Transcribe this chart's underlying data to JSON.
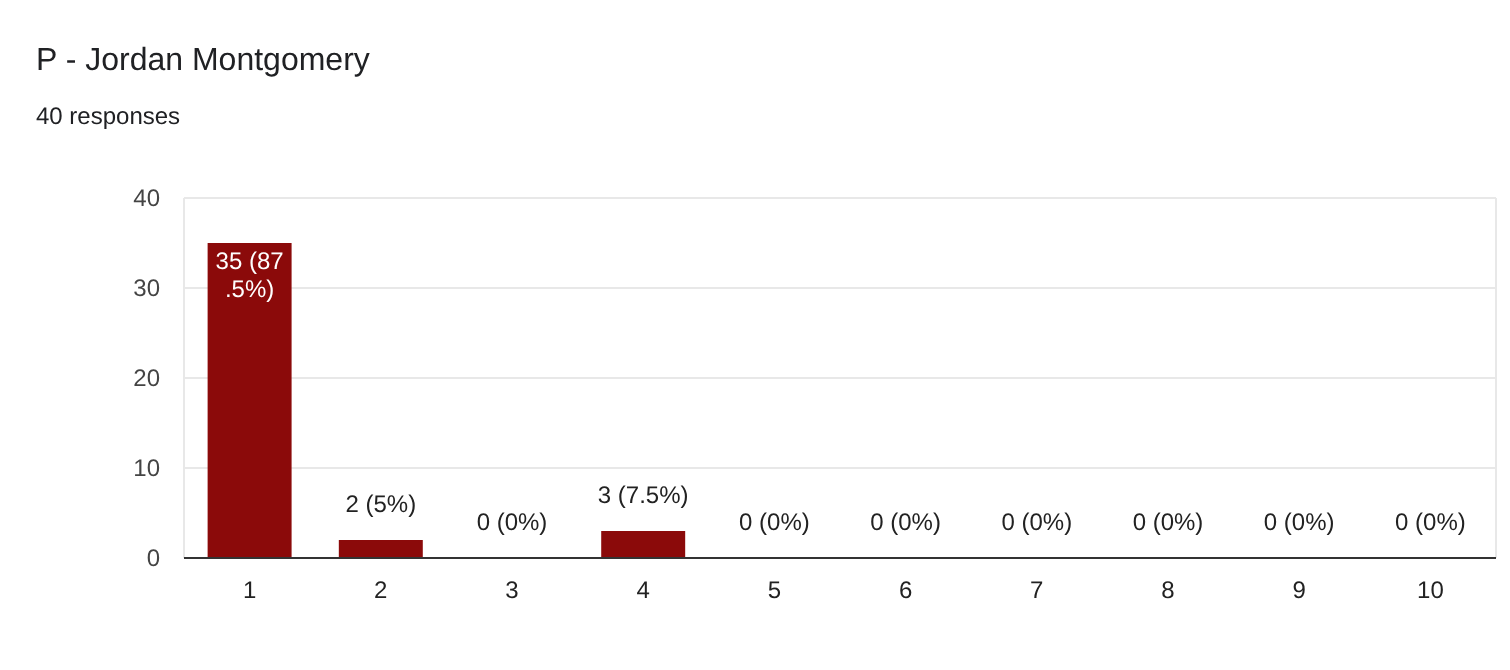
{
  "chart_data": {
    "type": "bar",
    "title": "P - Jordan Montgomery",
    "subtitle": "40 responses",
    "categories": [
      "1",
      "2",
      "3",
      "4",
      "5",
      "6",
      "7",
      "8",
      "9",
      "10"
    ],
    "values": [
      35,
      2,
      0,
      3,
      0,
      0,
      0,
      0,
      0,
      0
    ],
    "value_labels": [
      "35 (87.5%)",
      "2 (5%)",
      "0 (0%)",
      "3 (7.5%)",
      "0 (0%)",
      "0 (0%)",
      "0 (0%)",
      "0 (0%)",
      "0 (0%)",
      "0 (0%)"
    ],
    "color": "#8b0a0a",
    "ylim": [
      0,
      40
    ],
    "yticks": [
      0,
      10,
      20,
      30,
      40
    ],
    "grid": "y"
  }
}
